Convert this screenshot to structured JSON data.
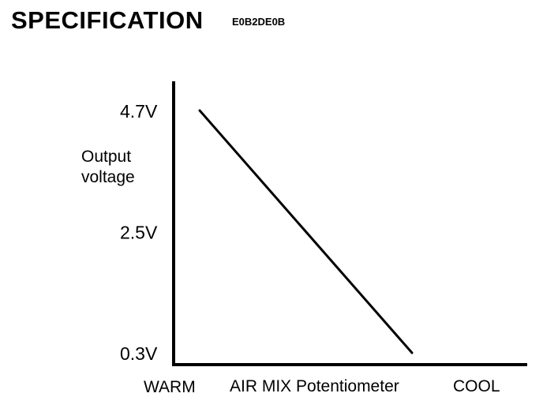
{
  "header": {
    "title": "SPECIFICATION",
    "code": "E0B2DE0B"
  },
  "chart_data": {
    "type": "line",
    "title": "",
    "xlabel": "AIR MIX Potentiometer",
    "ylabel": [
      "Output",
      "voltage"
    ],
    "x_tick_labels": [
      "WARM",
      "COOL"
    ],
    "y_ticks": [
      {
        "value": 4.7,
        "label": "4.7V"
      },
      {
        "value": 2.5,
        "label": "2.5V"
      },
      {
        "value": 0.3,
        "label": "0.3V"
      }
    ],
    "series": [
      {
        "x": [
          "WARM",
          "COOL"
        ],
        "y": [
          4.7,
          0.3
        ]
      }
    ],
    "grid": false,
    "legend": "none"
  },
  "colors": {
    "ink": "#000000",
    "background": "#ffffff"
  }
}
